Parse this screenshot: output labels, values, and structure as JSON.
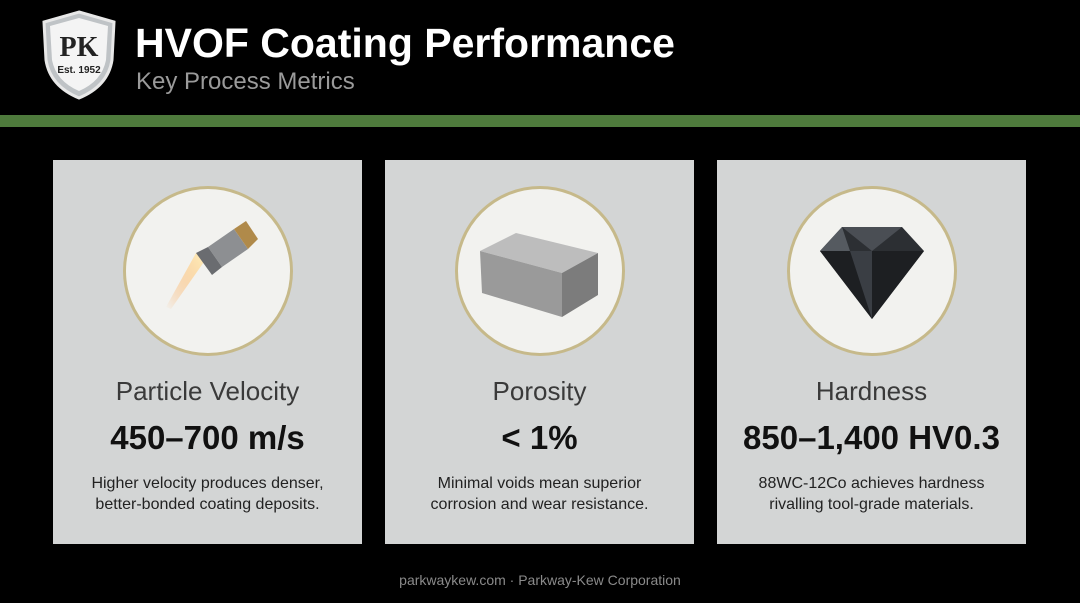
{
  "header": {
    "logo": {
      "initials": "PK",
      "established": "Est. 1952"
    },
    "title": "HVOF Coating Performance",
    "subtitle": "Key Process Metrics"
  },
  "cards": [
    {
      "label": "Particle Velocity",
      "metric": "450–700 m/s",
      "description": [
        "Higher velocity produces denser,",
        "better-bonded coating deposits."
      ]
    },
    {
      "label": "Porosity",
      "metric": "< 1%",
      "description": [
        "Minimal voids mean superior",
        "corrosion and wear resistance."
      ]
    },
    {
      "label": "Hardness",
      "metric": "850–1,400 HV0.3",
      "description": [
        "88WC-12Co achieves hardness",
        "rivalling tool-grade materials."
      ]
    }
  ],
  "footer": "parkwaykew.com · Parkway-Kew Corporation"
}
